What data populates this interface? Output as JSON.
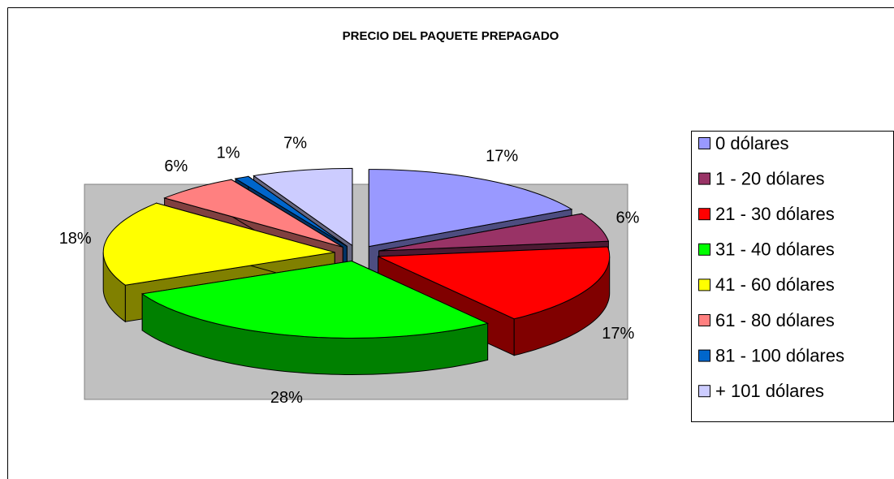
{
  "chart_data": {
    "type": "pie3d",
    "title": "PRECIO DEL PAQUETE PREPAGADO",
    "categories": [
      "0 dólares",
      "1 - 20 dólares",
      "21 - 30 dólares",
      "31 - 40 dólares",
      "41 - 60 dólares",
      "61 - 80 dólares",
      "81 - 100 dólares",
      "+ 101 dólares"
    ],
    "values": [
      17,
      6,
      17,
      28,
      18,
      6,
      1,
      7
    ],
    "value_labels": [
      "17%",
      "6%",
      "17%",
      "28%",
      "18%",
      "6%",
      "1%",
      "7%"
    ],
    "colors": [
      "#9999ff",
      "#993366",
      "#ff0000",
      "#00ff00",
      "#ffff00",
      "#ff8080",
      "#0066cc",
      "#ccccff"
    ],
    "legend": "right"
  }
}
